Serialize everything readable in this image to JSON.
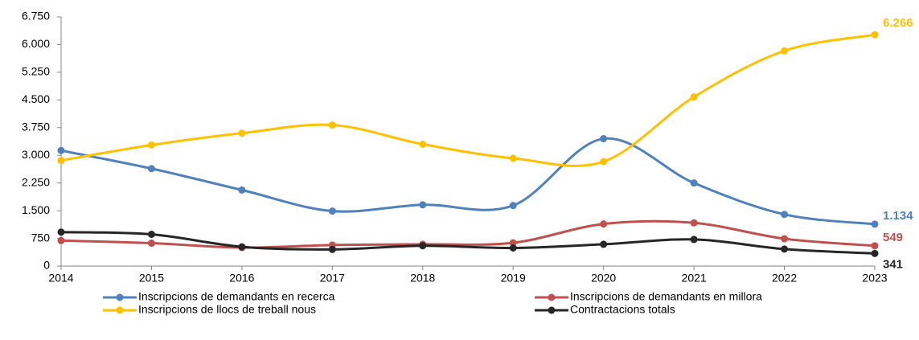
{
  "chart_data": {
    "type": "line",
    "categories": [
      "2014",
      "2015",
      "2016",
      "2017",
      "2018",
      "2019",
      "2020",
      "2021",
      "2022",
      "2023"
    ],
    "ylim": [
      0,
      6750
    ],
    "yticks": [
      0,
      750,
      {
        "value": 1500,
        "label": "1.500"
      },
      {
        "value": 2250,
        "label": "2.250"
      },
      {
        "value": 3000,
        "label": "3.000"
      },
      {
        "value": 3750,
        "label": "3.750"
      },
      {
        "value": 4500,
        "label": "4.500"
      },
      {
        "value": 5250,
        "label": "5.250"
      },
      {
        "value": 6000,
        "label": "6.000"
      },
      {
        "value": 6750,
        "label": "6.750"
      }
    ],
    "grid": false,
    "smooth": true,
    "legend": "bottom",
    "series": [
      {
        "name": "Inscripcions de demandants en recerca",
        "color": "#4f81bd",
        "values": [
          3130,
          2640,
          2060,
          1490,
          1660,
          1640,
          3450,
          2250,
          1400,
          1134
        ],
        "value_labels": [
          null,
          null,
          null,
          null,
          null,
          null,
          null,
          null,
          null,
          "1.134"
        ]
      },
      {
        "name": "Inscripcions de demandants en millora",
        "color": "#c0504d",
        "values": [
          690,
          620,
          500,
          570,
          590,
          630,
          1140,
          1170,
          740,
          549
        ],
        "value_labels": [
          null,
          null,
          null,
          null,
          null,
          null,
          null,
          null,
          null,
          "549"
        ]
      },
      {
        "name": "Inscripcions de llocs de treball nous",
        "color": "#ffc000",
        "values": [
          2860,
          3280,
          3600,
          3820,
          3300,
          2920,
          2830,
          4580,
          5830,
          6266
        ],
        "value_labels": [
          null,
          null,
          null,
          null,
          null,
          null,
          null,
          null,
          null,
          "6.266"
        ]
      },
      {
        "name": "Contractacions totals",
        "color": "#262626",
        "values": [
          920,
          860,
          520,
          450,
          550,
          490,
          590,
          720,
          460,
          341
        ],
        "value_labels": [
          null,
          null,
          null,
          null,
          null,
          null,
          null,
          null,
          null,
          "341"
        ]
      }
    ]
  }
}
